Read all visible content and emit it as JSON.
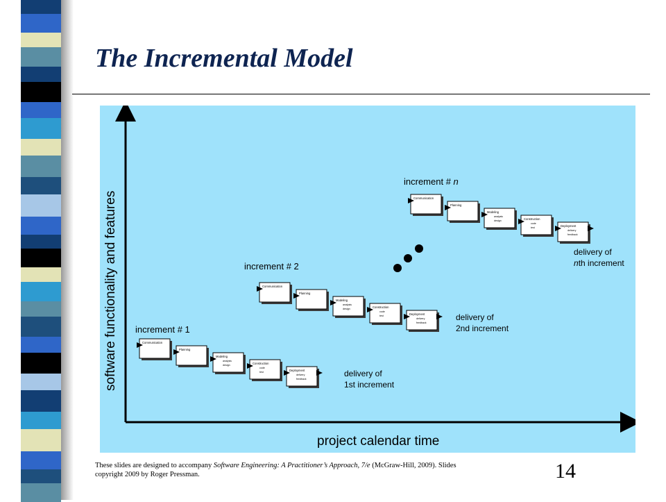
{
  "slide": {
    "title": "The Incremental Model",
    "page_number": "14",
    "footer": {
      "prefix": "These slides are designed to accompany ",
      "book": "Software Engineering: A Practitioner’s Approach, 7/e",
      "suffix": " (McGraw-Hill, 2009). Slides copyright 2009 by Roger Pressman."
    }
  },
  "diagram": {
    "y_axis_label": "software functionality and features",
    "x_axis_label": "project calendar time",
    "activities": [
      {
        "name": "Communication",
        "sub": []
      },
      {
        "name": "Planning",
        "sub": []
      },
      {
        "name": "Modeling",
        "sub": [
          "analysis",
          "design"
        ]
      },
      {
        "name": "Construction",
        "sub": [
          "code",
          "test"
        ]
      },
      {
        "name": "Deployment",
        "sub": [
          "delivery",
          "feedback"
        ]
      }
    ],
    "increments": [
      {
        "label": "increment # 1",
        "delivery_line1": "delivery of",
        "delivery_line2": "1st increment"
      },
      {
        "label": "increment # 2",
        "delivery_line1": "delivery of",
        "delivery_line2": "2nd increment"
      },
      {
        "label_prefix": "increment # ",
        "label_italic": "n",
        "delivery_line1": "delivery of",
        "delivery_italic": "n",
        "delivery_line2_suffix": "th increment"
      }
    ]
  },
  "colors": {
    "diagram_background": "#9fe2fb",
    "title": "#0e2451",
    "strip": [
      "#123e73",
      "#2f66c8",
      "#5a8ea3",
      "#e3e3b6",
      "#000000",
      "#2e9bd0",
      "#1e4f7c",
      "#a7c7e7"
    ]
  }
}
